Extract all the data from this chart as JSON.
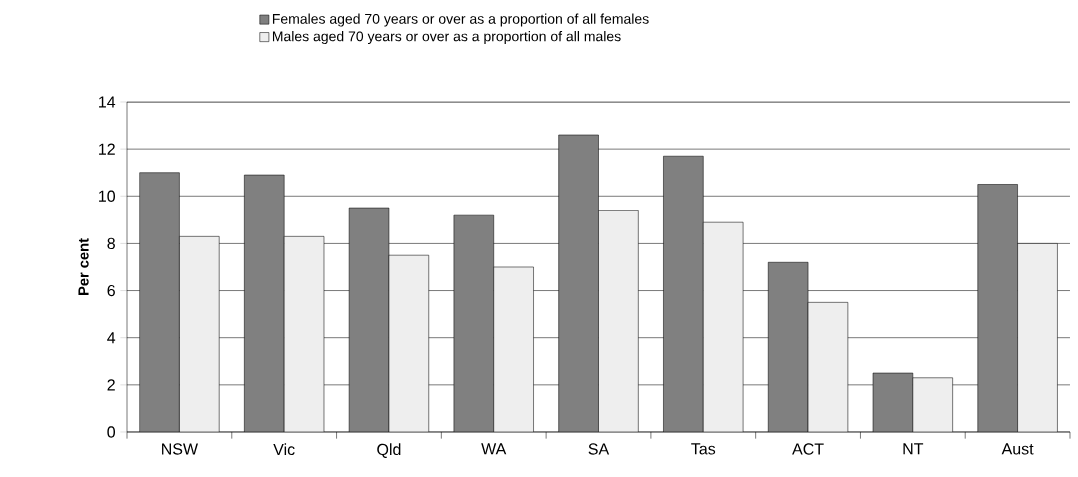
{
  "chart_data": {
    "type": "bar",
    "ylabel": "Per cent",
    "categories": [
      "NSW",
      "Vic",
      "Qld",
      "WA",
      "SA",
      "Tas",
      "ACT",
      "NT",
      "Aust"
    ],
    "series": [
      {
        "name": "Females aged 70 years or over as a proportion of all females",
        "color": "#808080",
        "values": [
          11.0,
          10.9,
          9.5,
          9.2,
          12.6,
          11.7,
          7.2,
          2.5,
          10.5
        ]
      },
      {
        "name": "Males aged 70 years or over as a proportion of all males",
        "color": "#eeeeee",
        "values": [
          8.3,
          8.3,
          7.5,
          7.0,
          9.4,
          8.9,
          5.5,
          2.3,
          8.0
        ]
      }
    ],
    "ylim": [
      0,
      14
    ],
    "yticks": [
      0,
      2,
      4,
      6,
      8,
      10,
      12,
      14
    ],
    "grid": "y",
    "legend": "top"
  }
}
